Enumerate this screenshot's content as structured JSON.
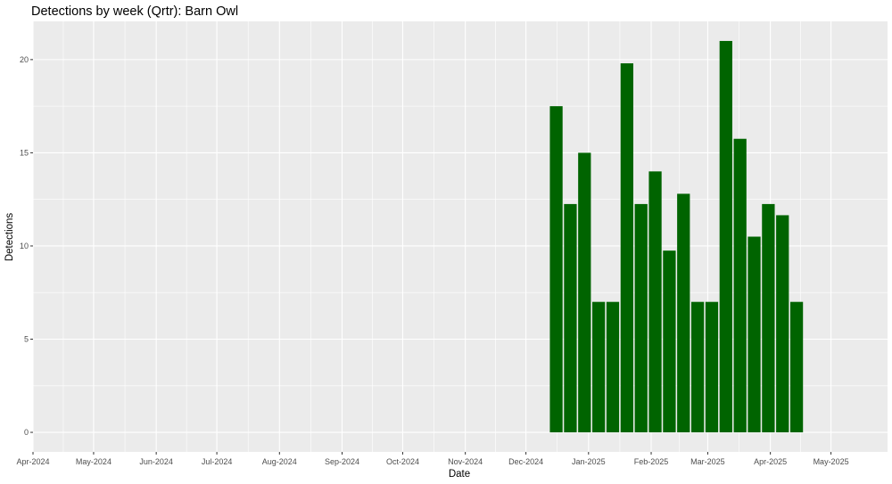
{
  "chart_data": {
    "type": "bar",
    "title": "Detections by week (Qrtr): Barn Owl",
    "xlabel": "Date",
    "ylabel": "Detections",
    "x_ticks": [
      "Apr-2024",
      "May-2024",
      "Jun-2024",
      "Jul-2024",
      "Aug-2024",
      "Sep-2024",
      "Oct-2024",
      "Nov-2024",
      "Dec-2024",
      "Jan-2025",
      "Feb-2025",
      "Mar-2025",
      "Apr-2025",
      "May-2025"
    ],
    "x_tick_dates": [
      "2024-04-01",
      "2024-05-01",
      "2024-06-01",
      "2024-07-01",
      "2024-08-01",
      "2024-09-01",
      "2024-10-01",
      "2024-11-01",
      "2024-12-01",
      "2025-01-01",
      "2025-02-01",
      "2025-03-01",
      "2025-04-01",
      "2025-05-01"
    ],
    "x_range": [
      "2024-04-01",
      "2025-05-29"
    ],
    "y_ticks": [
      0,
      5,
      10,
      15,
      20
    ],
    "ylim": [
      -1.05,
      22.05
    ],
    "bar_color": "#006400",
    "panel_color": "#EBEBEB",
    "grid": true,
    "weeks": [
      "2024-12-16",
      "2024-12-23",
      "2024-12-30",
      "2025-01-06",
      "2025-01-13",
      "2025-01-20",
      "2025-01-27",
      "2025-02-03",
      "2025-02-10",
      "2025-02-17",
      "2025-02-24",
      "2025-03-03",
      "2025-03-10",
      "2025-03-17",
      "2025-03-24",
      "2025-03-31",
      "2025-04-07",
      "2025-04-14"
    ],
    "values": [
      17.5,
      12.25,
      15,
      7,
      7,
      19.8,
      12.25,
      14,
      9.75,
      12.8,
      7,
      7,
      21,
      15.75,
      10.5,
      12.25,
      11.65,
      7
    ]
  }
}
